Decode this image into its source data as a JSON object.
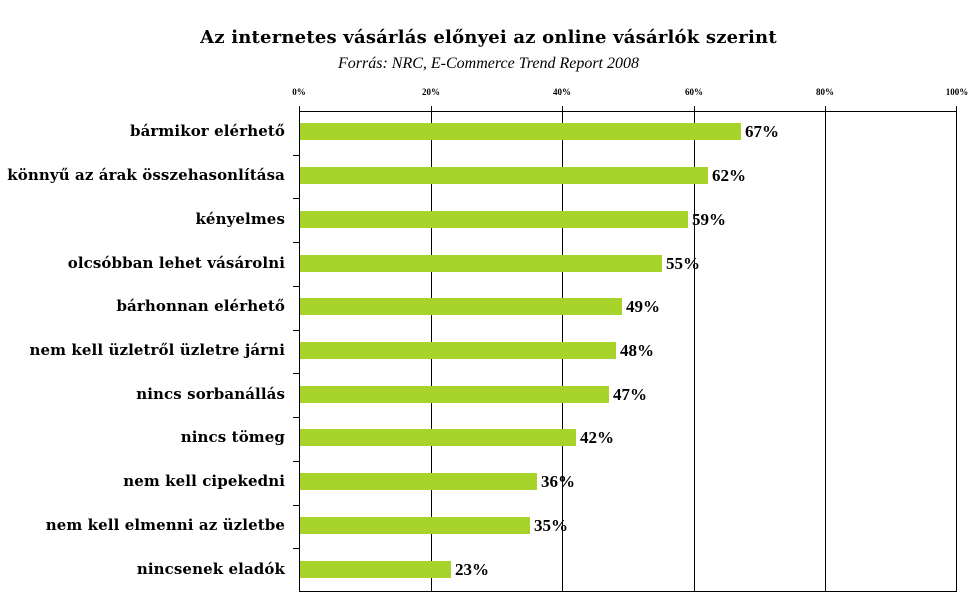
{
  "chart_data": {
    "type": "bar",
    "orientation": "horizontal",
    "title": "Az internetes vásárlás előnyei az online vásárlók szerint",
    "subtitle": "Forrás: NRC, E-Commerce Trend Report 2008",
    "xlabel": "",
    "ylabel": "",
    "xlim": [
      0,
      100
    ],
    "x_ticks": [
      "0%",
      "20%",
      "40%",
      "60%",
      "80%",
      "100%"
    ],
    "x_axis_position": "top",
    "grid": true,
    "legend": null,
    "bar_color": "#A8D32A",
    "categories": [
      "bármikor elérhető",
      "könnyű az árak összehasonlítása",
      "kényelmes",
      "olcsóbban lehet vásárolni",
      "bárhonnan elérhető",
      "nem kell üzletről üzletre járni",
      "nincs sorbanállás",
      "nincs tömeg",
      "nem kell cipekedni",
      "nem kell elmenni az üzletbe",
      "nincsenek eladók"
    ],
    "values": [
      67,
      62,
      59,
      55,
      49,
      48,
      47,
      42,
      36,
      35,
      23
    ],
    "value_labels": [
      "67%",
      "62%",
      "59%",
      "55%",
      "49%",
      "48%",
      "47%",
      "42%",
      "36%",
      "35%",
      "23%"
    ]
  }
}
